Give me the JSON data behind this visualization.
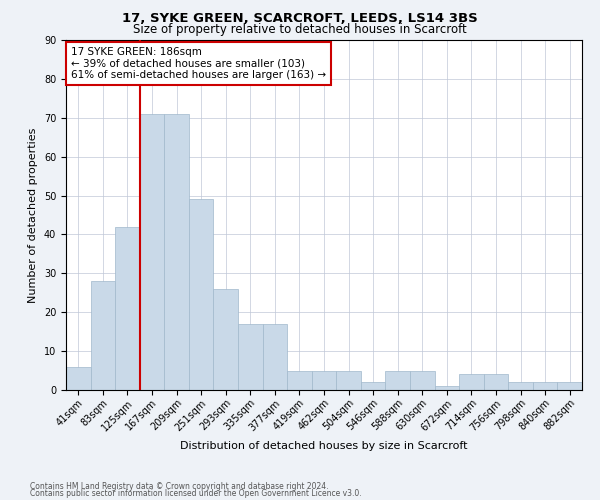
{
  "title": "17, SYKE GREEN, SCARCROFT, LEEDS, LS14 3BS",
  "subtitle": "Size of property relative to detached houses in Scarcroft",
  "xlabel": "Distribution of detached houses by size in Scarcroft",
  "ylabel": "Number of detached properties",
  "footnote1": "Contains HM Land Registry data © Crown copyright and database right 2024.",
  "footnote2": "Contains public sector information licensed under the Open Government Licence v3.0.",
  "bar_labels": [
    "41sqm",
    "83sqm",
    "125sqm",
    "167sqm",
    "209sqm",
    "251sqm",
    "293sqm",
    "335sqm",
    "377sqm",
    "419sqm",
    "462sqm",
    "504sqm",
    "546sqm",
    "588sqm",
    "630sqm",
    "672sqm",
    "714sqm",
    "756sqm",
    "798sqm",
    "840sqm",
    "882sqm"
  ],
  "bar_values": [
    6,
    28,
    42,
    71,
    71,
    49,
    26,
    17,
    17,
    5,
    5,
    5,
    2,
    5,
    5,
    1,
    4,
    4,
    2,
    2,
    2
  ],
  "bar_color": "#c9d9e8",
  "bar_edge_color": "#a0b8cc",
  "bar_edge_width": 0.5,
  "vline_x": 2.5,
  "vline_color": "#cc0000",
  "ylim": [
    0,
    90
  ],
  "yticks": [
    0,
    10,
    20,
    30,
    40,
    50,
    60,
    70,
    80,
    90
  ],
  "annotation_text": "17 SYKE GREEN: 186sqm\n← 39% of detached houses are smaller (103)\n61% of semi-detached houses are larger (163) →",
  "annotation_box_color": "#cc0000",
  "bg_color": "#eef2f7",
  "plot_bg_color": "#ffffff",
  "grid_color": "#c0c8d8",
  "title_fontsize": 9.5,
  "subtitle_fontsize": 8.5,
  "tick_fontsize": 7,
  "ylabel_fontsize": 8,
  "xlabel_fontsize": 8,
  "annot_fontsize": 7.5,
  "footnote_fontsize": 5.5
}
